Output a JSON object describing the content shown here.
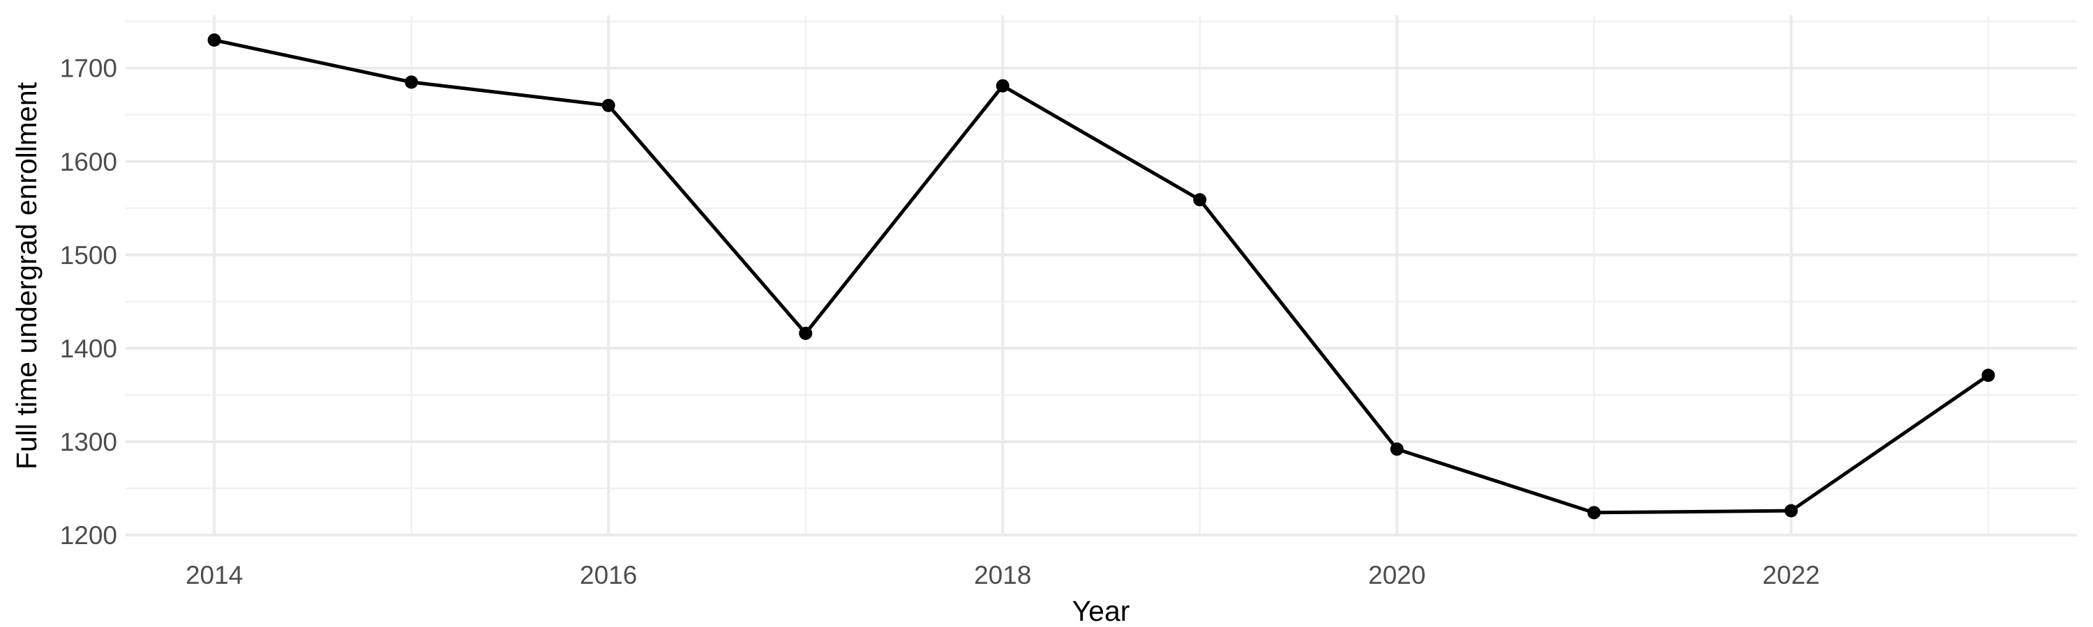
{
  "chart_data": {
    "type": "line",
    "title": "",
    "xlabel": "Year",
    "ylabel": "Full time undergrad enrollment",
    "x": [
      2014,
      2015,
      2016,
      2017,
      2018,
      2019,
      2020,
      2021,
      2022,
      2023
    ],
    "series": [
      {
        "name": "Full time undergrad enrollment",
        "values": [
          1730,
          1685,
          1660,
          1416,
          1681,
          1559,
          1292,
          1224,
          1226,
          1371
        ]
      }
    ],
    "x_ticks_major": [
      2014,
      2016,
      2018,
      2020,
      2022
    ],
    "x_ticks_minor": [
      2015,
      2017,
      2019,
      2021,
      2023
    ],
    "y_ticks_major": [
      1200,
      1300,
      1400,
      1500,
      1600,
      1700
    ],
    "y_ticks_minor": [
      1250,
      1350,
      1450,
      1550,
      1650,
      1750
    ],
    "xlim": [
      2013.55,
      2023.45
    ],
    "ylim": [
      1198.5,
      1756.5
    ],
    "grid": "major-and-minor",
    "legend": false,
    "colors": {
      "line": "#000000",
      "point": "#000000",
      "grid_major": "#ebebeb",
      "grid_minor": "#f1f1f1",
      "tick_label": "#4d4d4d",
      "axis_title": "#000000",
      "background": "#ffffff"
    }
  }
}
